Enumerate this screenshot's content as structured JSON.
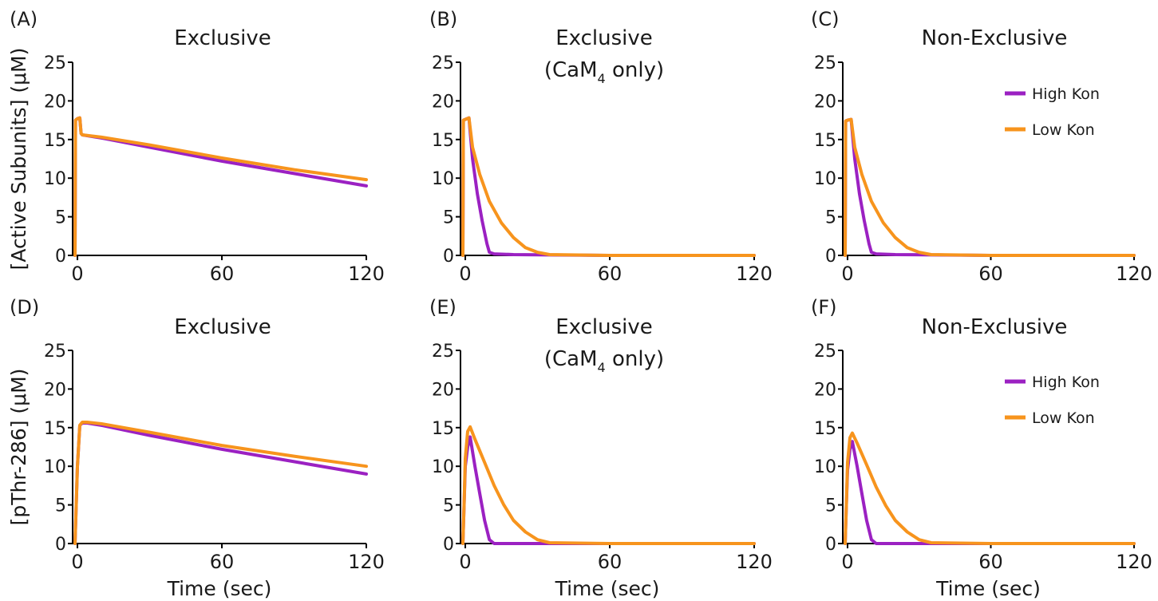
{
  "shared": {
    "ylabel_row1": "[Active Subunits] (μM)",
    "ylabel_row2": "[pThr-286] (μM)",
    "xlabel": "Time (sec)",
    "xticks": [
      0,
      60,
      120
    ],
    "yticks": [
      0,
      5,
      10,
      15,
      20,
      25
    ],
    "xlim": [
      -2,
      120
    ],
    "ylim": [
      0,
      25
    ],
    "legend_placement": "top-right",
    "colors": {
      "high": "#9b21c2",
      "low": "#f7941d"
    }
  },
  "panels": [
    {
      "letter": "(A)",
      "title": "Exclusive",
      "subtitle": ""
    },
    {
      "letter": "(B)",
      "title": "Exclusive",
      "subtitle": "(CaM",
      "subtitle_sub": "4",
      "subtitle_tail": " only)"
    },
    {
      "letter": "(C)",
      "title": "Non-Exclusive",
      "subtitle": "",
      "legend": [
        "High Kon",
        "Low Kon"
      ]
    },
    {
      "letter": "(D)",
      "title": "Exclusive",
      "subtitle": ""
    },
    {
      "letter": "(E)",
      "title": "Exclusive",
      "subtitle": "(CaM",
      "subtitle_sub": "4",
      "subtitle_tail": " only)"
    },
    {
      "letter": "(F)",
      "title": "Non-Exclusive",
      "subtitle": "",
      "legend": [
        "High Kon",
        "Low Kon"
      ]
    }
  ],
  "chart_data": [
    {
      "type": "line",
      "panel": "A",
      "title": "Exclusive",
      "xlabel": "",
      "ylabel": "[Active Subunits] (μM)",
      "xlim": [
        -2,
        120
      ],
      "ylim": [
        0,
        25
      ],
      "series": [
        {
          "name": "High Kon",
          "color": "#9b21c2",
          "x": [
            -1,
            -0.8,
            0,
            1,
            1.5,
            2,
            10,
            30,
            60,
            90,
            120
          ],
          "y": [
            0,
            17.5,
            17.7,
            17.8,
            15.8,
            15.6,
            15.2,
            14.0,
            12.2,
            10.6,
            9.0
          ]
        },
        {
          "name": "Low Kon",
          "color": "#f7941d",
          "x": [
            -1,
            -0.8,
            0,
            1,
            1.5,
            2,
            10,
            30,
            60,
            90,
            120
          ],
          "y": [
            0,
            17.5,
            17.7,
            17.8,
            15.8,
            15.6,
            15.3,
            14.3,
            12.6,
            11.1,
            9.8
          ]
        }
      ]
    },
    {
      "type": "line",
      "panel": "B",
      "title": "Exclusive (CaM4 only)",
      "xlabel": "",
      "ylabel": "",
      "xlim": [
        -2,
        120
      ],
      "ylim": [
        0,
        25
      ],
      "series": [
        {
          "name": "High Kon",
          "color": "#9b21c2",
          "x": [
            -1,
            -0.8,
            0,
            1.5,
            3,
            5,
            7,
            9,
            10,
            12,
            20,
            60,
            120
          ],
          "y": [
            0,
            17.5,
            17.6,
            17.8,
            12.5,
            8.0,
            4.5,
            1.5,
            0.4,
            0.2,
            0.1,
            0,
            0
          ]
        },
        {
          "name": "Low Kon",
          "color": "#f7941d",
          "x": [
            -1,
            -0.8,
            0,
            1.5,
            3,
            6,
            10,
            15,
            20,
            25,
            30,
            35,
            60,
            120
          ],
          "y": [
            0,
            17.5,
            17.6,
            17.8,
            14.0,
            10.5,
            7.0,
            4.2,
            2.3,
            1.0,
            0.4,
            0.1,
            0,
            0
          ]
        }
      ]
    },
    {
      "type": "line",
      "panel": "C",
      "title": "Non-Exclusive",
      "xlabel": "",
      "ylabel": "",
      "xlim": [
        -2,
        120
      ],
      "ylim": [
        0,
        25
      ],
      "series": [
        {
          "name": "High Kon",
          "color": "#9b21c2",
          "x": [
            -1,
            -0.8,
            0,
            1.5,
            3,
            5,
            7,
            9,
            10,
            12,
            20,
            60,
            120
          ],
          "y": [
            0,
            17.4,
            17.5,
            17.6,
            12.5,
            8.0,
            4.5,
            1.5,
            0.4,
            0.2,
            0.1,
            0,
            0
          ]
        },
        {
          "name": "Low Kon",
          "color": "#f7941d",
          "x": [
            -1,
            -0.8,
            0,
            1.5,
            3,
            6,
            10,
            15,
            20,
            25,
            30,
            35,
            60,
            120
          ],
          "y": [
            0,
            17.4,
            17.5,
            17.6,
            14.0,
            10.5,
            7.0,
            4.2,
            2.3,
            1.0,
            0.4,
            0.1,
            0,
            0
          ]
        }
      ]
    },
    {
      "type": "line",
      "panel": "D",
      "title": "Exclusive",
      "xlabel": "Time (sec)",
      "ylabel": "[pThr-286] (μM)",
      "xlim": [
        -2,
        120
      ],
      "ylim": [
        0,
        25
      ],
      "series": [
        {
          "name": "High Kon",
          "color": "#9b21c2",
          "x": [
            -1,
            0,
            1,
            2,
            4,
            10,
            30,
            60,
            90,
            120
          ],
          "y": [
            0,
            10,
            15.3,
            15.6,
            15.6,
            15.3,
            14.0,
            12.2,
            10.6,
            9.0
          ]
        },
        {
          "name": "Low Kon",
          "color": "#f7941d",
          "x": [
            -1,
            0,
            1,
            2,
            4,
            10,
            30,
            60,
            90,
            120
          ],
          "y": [
            0,
            10,
            15.3,
            15.7,
            15.7,
            15.5,
            14.4,
            12.7,
            11.3,
            10.0
          ]
        }
      ]
    },
    {
      "type": "line",
      "panel": "E",
      "title": "Exclusive (CaM4 only)",
      "xlabel": "Time (sec)",
      "ylabel": "",
      "xlim": [
        -2,
        120
      ],
      "ylim": [
        0,
        25
      ],
      "series": [
        {
          "name": "High Kon",
          "color": "#9b21c2",
          "x": [
            -1,
            -0.5,
            0,
            1,
            2,
            4,
            6,
            8,
            10,
            12,
            60,
            120
          ],
          "y": [
            0,
            5,
            10,
            12.5,
            13.8,
            10.0,
            6.5,
            3.0,
            0.5,
            0,
            0,
            0
          ]
        },
        {
          "name": "Low Kon",
          "color": "#f7941d",
          "x": [
            -1,
            -0.5,
            0,
            1,
            2,
            4,
            8,
            12,
            16,
            20,
            25,
            30,
            35,
            60,
            120
          ],
          "y": [
            0,
            5,
            11,
            14.5,
            15.1,
            13.5,
            10.5,
            7.5,
            5.0,
            3.0,
            1.5,
            0.5,
            0.1,
            0,
            0
          ]
        }
      ]
    },
    {
      "type": "line",
      "panel": "F",
      "title": "Non-Exclusive",
      "xlabel": "Time (sec)",
      "ylabel": "",
      "xlim": [
        -2,
        120
      ],
      "ylim": [
        0,
        25
      ],
      "series": [
        {
          "name": "High Kon",
          "color": "#9b21c2",
          "x": [
            -1,
            -0.5,
            0,
            1,
            2,
            4,
            6,
            8,
            10,
            12,
            60,
            120
          ],
          "y": [
            0,
            5,
            9.5,
            12.2,
            13.2,
            10.0,
            6.5,
            3.0,
            0.5,
            0,
            0,
            0
          ]
        },
        {
          "name": "Low Kon",
          "color": "#f7941d",
          "x": [
            -1,
            -0.5,
            0,
            1,
            2,
            4,
            8,
            12,
            16,
            20,
            25,
            30,
            35,
            60,
            120
          ],
          "y": [
            0,
            5,
            10.5,
            13.7,
            14.3,
            13.0,
            10.2,
            7.3,
            4.9,
            3.0,
            1.5,
            0.5,
            0.1,
            0,
            0
          ]
        }
      ]
    }
  ]
}
